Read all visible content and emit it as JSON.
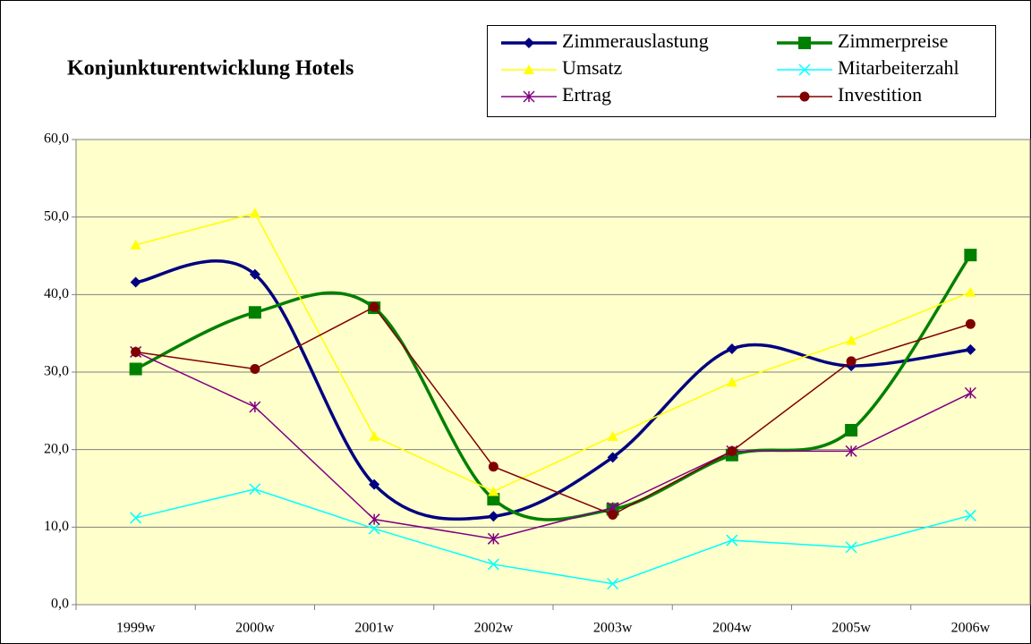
{
  "chart_data": {
    "type": "line",
    "title": "Konjunkturentwicklung Hotels",
    "categories": [
      "1999w",
      "2000w",
      "2001w",
      "2002w",
      "2003w",
      "2004w",
      "2005w",
      "2006w"
    ],
    "series": [
      {
        "name": "Zimmerauslastung",
        "color": "#000080",
        "marker": "diamond",
        "smooth": true,
        "values": [
          41.6,
          42.6,
          15.5,
          11.4,
          19.0,
          33.0,
          30.8,
          32.9
        ]
      },
      {
        "name": "Zimmerpreise",
        "color": "#008000",
        "marker": "square",
        "smooth": true,
        "values": [
          30.4,
          37.7,
          38.3,
          13.6,
          12.3,
          19.3,
          22.5,
          45.1
        ]
      },
      {
        "name": "Umsatz",
        "color": "#ffff00",
        "marker": "triangle",
        "smooth": false,
        "values": [
          46.4,
          50.5,
          21.7,
          14.6,
          21.7,
          28.7,
          34.1,
          40.3
        ]
      },
      {
        "name": "Mitarbeiterzahl",
        "color": "#00ffff",
        "marker": "x",
        "smooth": false,
        "values": [
          11.2,
          14.9,
          9.8,
          5.2,
          2.7,
          8.3,
          7.4,
          11.5
        ]
      },
      {
        "name": "Ertrag",
        "color": "#800080",
        "marker": "asterisk",
        "smooth": false,
        "values": [
          32.6,
          25.5,
          11.0,
          8.5,
          12.5,
          19.8,
          19.8,
          27.3
        ]
      },
      {
        "name": "Investition",
        "color": "#800000",
        "marker": "circle",
        "smooth": false,
        "values": [
          32.6,
          30.4,
          38.4,
          17.8,
          11.6,
          19.8,
          31.4,
          36.2
        ]
      }
    ],
    "ylim": [
      0,
      60
    ],
    "yticks": [
      {
        "value": 0,
        "label": "0,0"
      },
      {
        "value": 10,
        "label": "10,0"
      },
      {
        "value": 20,
        "label": "20,0"
      },
      {
        "value": 30,
        "label": "30,0"
      },
      {
        "value": 40,
        "label": "40,0"
      },
      {
        "value": 50,
        "label": "50,0"
      },
      {
        "value": 60,
        "label": "60,0"
      }
    ],
    "grid": true,
    "legend": "top-right"
  }
}
